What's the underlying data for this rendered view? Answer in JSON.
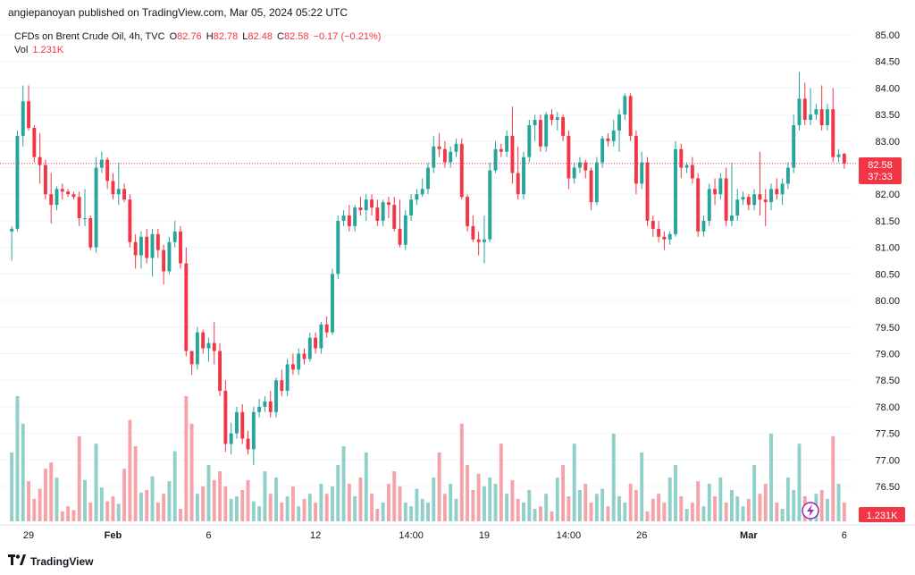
{
  "header": {
    "published": "angiepanoyan published on TradingView.com, Mar 05, 2024 05:22 UTC"
  },
  "legend": {
    "symbol": "CFDs on Brent Crude Oil, 4h, TVC",
    "o_label": "O",
    "o_value": "82.76",
    "h_label": "H",
    "h_value": "82.78",
    "l_label": "L",
    "l_value": "82.48",
    "c_label": "C",
    "c_value": "82.58",
    "change": "−0.17 (−0.21%)",
    "vol_label": "Vol",
    "vol_value": "1.231K"
  },
  "price_axis": {
    "ticks": [
      "85.00",
      "84.50",
      "84.00",
      "83.50",
      "83.00",
      "82.50",
      "82.00",
      "81.50",
      "81.00",
      "80.50",
      "80.00",
      "79.50",
      "79.00",
      "78.50",
      "78.00",
      "77.50",
      "77.00",
      "76.50"
    ]
  },
  "time_axis": {
    "ticks": [
      "29",
      "Feb",
      "6",
      "12",
      "14:00",
      "19",
      "14:00",
      "26",
      "Mar",
      "6"
    ]
  },
  "last_price": {
    "price": "82.58",
    "countdown": "37:33"
  },
  "volume_label": "1.231K",
  "footer": {
    "brand": "TradingView"
  },
  "colors": {
    "up": "#26a69a",
    "down": "#f23645",
    "up_vol": "#8fd0c9",
    "down_vol": "#f5a3a8",
    "grid": "#f0f3fa"
  },
  "chart_data": {
    "type": "candlestick",
    "title": "CFDs on Brent Crude Oil, 4h, TVC",
    "ylim": [
      76.2,
      85.2
    ],
    "volume_max": 1.0,
    "candles": [
      {
        "o": 81.3,
        "h": 81.4,
        "l": 80.75,
        "c": 81.35,
        "v": 0.55
      },
      {
        "o": 81.35,
        "h": 83.2,
        "l": 81.3,
        "c": 83.1,
        "v": 1.0
      },
      {
        "o": 83.1,
        "h": 84.05,
        "l": 82.9,
        "c": 83.75,
        "v": 0.78
      },
      {
        "o": 83.75,
        "h": 84.05,
        "l": 83.2,
        "c": 83.25,
        "v": 0.32
      },
      {
        "o": 83.25,
        "h": 83.3,
        "l": 82.6,
        "c": 82.7,
        "v": 0.18
      },
      {
        "o": 82.7,
        "h": 83.15,
        "l": 82.2,
        "c": 82.55,
        "v": 0.26
      },
      {
        "o": 82.55,
        "h": 82.65,
        "l": 81.9,
        "c": 82.0,
        "v": 0.42
      },
      {
        "o": 82.0,
        "h": 82.4,
        "l": 81.45,
        "c": 81.8,
        "v": 0.47
      },
      {
        "o": 81.8,
        "h": 82.15,
        "l": 81.7,
        "c": 82.1,
        "v": 0.35
      },
      {
        "o": 82.1,
        "h": 82.2,
        "l": 81.9,
        "c": 82.05,
        "v": 0.08
      },
      {
        "o": 82.05,
        "h": 82.1,
        "l": 81.95,
        "c": 82.0,
        "v": 0.12
      },
      {
        "o": 82.0,
        "h": 82.05,
        "l": 81.9,
        "c": 81.95,
        "v": 0.09
      },
      {
        "o": 81.95,
        "h": 82.05,
        "l": 81.4,
        "c": 81.55,
        "v": 0.68
      },
      {
        "o": 81.55,
        "h": 82.1,
        "l": 81.4,
        "c": 81.55,
        "v": 0.33
      },
      {
        "o": 81.55,
        "h": 81.6,
        "l": 80.95,
        "c": 81.0,
        "v": 0.15
      },
      {
        "o": 81.0,
        "h": 82.7,
        "l": 80.9,
        "c": 82.5,
        "v": 0.62
      },
      {
        "o": 82.5,
        "h": 82.8,
        "l": 82.4,
        "c": 82.65,
        "v": 0.27
      },
      {
        "o": 82.65,
        "h": 82.7,
        "l": 82.1,
        "c": 82.25,
        "v": 0.16
      },
      {
        "o": 82.25,
        "h": 82.4,
        "l": 81.9,
        "c": 82.0,
        "v": 0.2
      },
      {
        "o": 82.0,
        "h": 82.6,
        "l": 81.8,
        "c": 82.1,
        "v": 0.14
      },
      {
        "o": 82.1,
        "h": 82.2,
        "l": 81.85,
        "c": 81.9,
        "v": 0.42
      },
      {
        "o": 81.9,
        "h": 82.0,
        "l": 81.0,
        "c": 81.1,
        "v": 0.81
      },
      {
        "o": 81.1,
        "h": 81.25,
        "l": 80.6,
        "c": 80.85,
        "v": 0.6
      },
      {
        "o": 80.85,
        "h": 81.3,
        "l": 80.6,
        "c": 81.2,
        "v": 0.23
      },
      {
        "o": 81.2,
        "h": 81.35,
        "l": 80.7,
        "c": 80.8,
        "v": 0.25
      },
      {
        "o": 80.8,
        "h": 81.35,
        "l": 80.45,
        "c": 81.25,
        "v": 0.36
      },
      {
        "o": 81.25,
        "h": 81.35,
        "l": 80.8,
        "c": 80.95,
        "v": 0.15
      },
      {
        "o": 80.95,
        "h": 81.05,
        "l": 80.3,
        "c": 80.55,
        "v": 0.22
      },
      {
        "o": 80.55,
        "h": 81.2,
        "l": 80.5,
        "c": 81.1,
        "v": 0.32
      },
      {
        "o": 81.1,
        "h": 81.5,
        "l": 81.0,
        "c": 81.3,
        "v": 0.56
      },
      {
        "o": 81.3,
        "h": 81.4,
        "l": 80.6,
        "c": 80.7,
        "v": 0.1
      },
      {
        "o": 80.7,
        "h": 81.0,
        "l": 78.95,
        "c": 79.05,
        "v": 1.0
      },
      {
        "o": 79.05,
        "h": 79.0,
        "l": 78.6,
        "c": 78.8,
        "v": 0.78
      },
      {
        "o": 78.8,
        "h": 79.5,
        "l": 78.7,
        "c": 79.4,
        "v": 0.22
      },
      {
        "o": 79.4,
        "h": 79.45,
        "l": 79.0,
        "c": 79.1,
        "v": 0.28
      },
      {
        "o": 79.1,
        "h": 79.3,
        "l": 78.85,
        "c": 79.2,
        "v": 0.45
      },
      {
        "o": 79.2,
        "h": 79.6,
        "l": 78.8,
        "c": 79.05,
        "v": 0.33
      },
      {
        "o": 79.05,
        "h": 79.2,
        "l": 78.2,
        "c": 78.3,
        "v": 0.4
      },
      {
        "o": 78.3,
        "h": 78.5,
        "l": 77.15,
        "c": 77.3,
        "v": 0.28
      },
      {
        "o": 77.3,
        "h": 77.7,
        "l": 77.1,
        "c": 77.5,
        "v": 0.18
      },
      {
        "o": 77.5,
        "h": 78.0,
        "l": 77.4,
        "c": 77.9,
        "v": 0.2
      },
      {
        "o": 77.9,
        "h": 78.05,
        "l": 77.3,
        "c": 77.4,
        "v": 0.25
      },
      {
        "o": 77.4,
        "h": 77.55,
        "l": 77.1,
        "c": 77.2,
        "v": 0.33
      },
      {
        "o": 77.2,
        "h": 78.0,
        "l": 76.9,
        "c": 77.9,
        "v": 0.16
      },
      {
        "o": 77.9,
        "h": 78.15,
        "l": 77.8,
        "c": 78.0,
        "v": 0.12
      },
      {
        "o": 78.0,
        "h": 78.2,
        "l": 77.9,
        "c": 78.1,
        "v": 0.4
      },
      {
        "o": 78.1,
        "h": 78.3,
        "l": 77.8,
        "c": 77.9,
        "v": 0.22
      },
      {
        "o": 77.9,
        "h": 78.55,
        "l": 77.8,
        "c": 78.5,
        "v": 0.35
      },
      {
        "o": 78.5,
        "h": 78.7,
        "l": 78.2,
        "c": 78.3,
        "v": 0.15
      },
      {
        "o": 78.3,
        "h": 78.9,
        "l": 78.2,
        "c": 78.8,
        "v": 0.2
      },
      {
        "o": 78.8,
        "h": 79.0,
        "l": 78.6,
        "c": 78.7,
        "v": 0.28
      },
      {
        "o": 78.7,
        "h": 79.1,
        "l": 78.6,
        "c": 79.0,
        "v": 0.12
      },
      {
        "o": 79.0,
        "h": 79.1,
        "l": 78.8,
        "c": 78.9,
        "v": 0.18
      },
      {
        "o": 78.9,
        "h": 79.4,
        "l": 78.85,
        "c": 79.3,
        "v": 0.22
      },
      {
        "o": 79.3,
        "h": 79.4,
        "l": 79.0,
        "c": 79.1,
        "v": 0.15
      },
      {
        "o": 79.1,
        "h": 79.6,
        "l": 79.0,
        "c": 79.55,
        "v": 0.3
      },
      {
        "o": 79.55,
        "h": 79.7,
        "l": 79.3,
        "c": 79.4,
        "v": 0.22
      },
      {
        "o": 79.4,
        "h": 80.6,
        "l": 79.35,
        "c": 80.5,
        "v": 0.28
      },
      {
        "o": 80.5,
        "h": 81.6,
        "l": 80.4,
        "c": 81.5,
        "v": 0.45
      },
      {
        "o": 81.5,
        "h": 81.7,
        "l": 81.4,
        "c": 81.6,
        "v": 0.6
      },
      {
        "o": 81.6,
        "h": 81.8,
        "l": 81.3,
        "c": 81.4,
        "v": 0.3
      },
      {
        "o": 81.4,
        "h": 81.8,
        "l": 81.3,
        "c": 81.75,
        "v": 0.2
      },
      {
        "o": 81.75,
        "h": 81.95,
        "l": 81.6,
        "c": 81.7,
        "v": 0.35
      },
      {
        "o": 81.7,
        "h": 82.0,
        "l": 81.5,
        "c": 81.9,
        "v": 0.55
      },
      {
        "o": 81.9,
        "h": 82.0,
        "l": 81.6,
        "c": 81.75,
        "v": 0.22
      },
      {
        "o": 81.75,
        "h": 81.9,
        "l": 81.4,
        "c": 81.5,
        "v": 0.1
      },
      {
        "o": 81.5,
        "h": 81.9,
        "l": 81.4,
        "c": 81.85,
        "v": 0.15
      },
      {
        "o": 81.85,
        "h": 81.95,
        "l": 81.55,
        "c": 81.8,
        "v": 0.3
      },
      {
        "o": 81.8,
        "h": 81.95,
        "l": 81.3,
        "c": 81.35,
        "v": 0.4
      },
      {
        "o": 81.35,
        "h": 81.9,
        "l": 81.0,
        "c": 81.05,
        "v": 0.28
      },
      {
        "o": 81.05,
        "h": 81.7,
        "l": 80.95,
        "c": 81.6,
        "v": 0.15
      },
      {
        "o": 81.6,
        "h": 82.0,
        "l": 81.5,
        "c": 81.9,
        "v": 0.12
      },
      {
        "o": 81.9,
        "h": 82.1,
        "l": 81.8,
        "c": 82.0,
        "v": 0.26
      },
      {
        "o": 82.0,
        "h": 82.3,
        "l": 81.95,
        "c": 82.1,
        "v": 0.18
      },
      {
        "o": 82.1,
        "h": 82.6,
        "l": 82.0,
        "c": 82.5,
        "v": 0.15
      },
      {
        "o": 82.5,
        "h": 83.1,
        "l": 82.4,
        "c": 82.9,
        "v": 0.35
      },
      {
        "o": 82.9,
        "h": 83.15,
        "l": 82.7,
        "c": 82.85,
        "v": 0.55
      },
      {
        "o": 82.85,
        "h": 83.0,
        "l": 82.5,
        "c": 82.6,
        "v": 0.22
      },
      {
        "o": 82.6,
        "h": 82.9,
        "l": 82.5,
        "c": 82.8,
        "v": 0.3
      },
      {
        "o": 82.8,
        "h": 83.05,
        "l": 82.7,
        "c": 82.95,
        "v": 0.18
      },
      {
        "o": 82.95,
        "h": 83.05,
        "l": 81.9,
        "c": 81.95,
        "v": 0.78
      },
      {
        "o": 81.95,
        "h": 82.0,
        "l": 81.3,
        "c": 81.4,
        "v": 0.45
      },
      {
        "o": 81.4,
        "h": 81.6,
        "l": 81.1,
        "c": 81.15,
        "v": 0.25
      },
      {
        "o": 81.15,
        "h": 81.3,
        "l": 80.85,
        "c": 81.1,
        "v": 0.38
      },
      {
        "o": 81.1,
        "h": 81.6,
        "l": 80.7,
        "c": 81.15,
        "v": 0.28
      },
      {
        "o": 81.15,
        "h": 82.6,
        "l": 81.1,
        "c": 82.45,
        "v": 0.35
      },
      {
        "o": 82.45,
        "h": 83.0,
        "l": 82.4,
        "c": 82.85,
        "v": 0.3
      },
      {
        "o": 82.85,
        "h": 82.95,
        "l": 82.7,
        "c": 82.8,
        "v": 0.62
      },
      {
        "o": 82.8,
        "h": 83.2,
        "l": 82.7,
        "c": 83.1,
        "v": 0.22
      },
      {
        "o": 83.1,
        "h": 83.65,
        "l": 82.2,
        "c": 82.4,
        "v": 0.33
      },
      {
        "o": 82.4,
        "h": 82.9,
        "l": 81.9,
        "c": 82.0,
        "v": 0.18
      },
      {
        "o": 82.0,
        "h": 82.8,
        "l": 81.9,
        "c": 82.7,
        "v": 0.15
      },
      {
        "o": 82.7,
        "h": 83.4,
        "l": 82.6,
        "c": 83.3,
        "v": 0.25
      },
      {
        "o": 83.3,
        "h": 83.5,
        "l": 83.0,
        "c": 83.4,
        "v": 0.1
      },
      {
        "o": 83.4,
        "h": 83.5,
        "l": 82.8,
        "c": 82.9,
        "v": 0.12
      },
      {
        "o": 82.9,
        "h": 83.55,
        "l": 82.8,
        "c": 83.5,
        "v": 0.22
      },
      {
        "o": 83.5,
        "h": 83.6,
        "l": 83.3,
        "c": 83.4,
        "v": 0.08
      },
      {
        "o": 83.4,
        "h": 83.55,
        "l": 83.2,
        "c": 83.45,
        "v": 0.35
      },
      {
        "o": 83.45,
        "h": 83.5,
        "l": 83.0,
        "c": 83.1,
        "v": 0.45
      },
      {
        "o": 83.1,
        "h": 83.2,
        "l": 82.1,
        "c": 82.3,
        "v": 0.2
      },
      {
        "o": 82.3,
        "h": 82.6,
        "l": 82.2,
        "c": 82.5,
        "v": 0.62
      },
      {
        "o": 82.5,
        "h": 82.7,
        "l": 82.4,
        "c": 82.6,
        "v": 0.25
      },
      {
        "o": 82.6,
        "h": 82.65,
        "l": 82.3,
        "c": 82.45,
        "v": 0.3
      },
      {
        "o": 82.45,
        "h": 82.5,
        "l": 81.7,
        "c": 81.85,
        "v": 0.15
      },
      {
        "o": 81.85,
        "h": 82.7,
        "l": 81.8,
        "c": 82.6,
        "v": 0.22
      },
      {
        "o": 82.6,
        "h": 83.1,
        "l": 82.5,
        "c": 83.05,
        "v": 0.26
      },
      {
        "o": 83.05,
        "h": 83.15,
        "l": 82.9,
        "c": 83.0,
        "v": 0.12
      },
      {
        "o": 83.0,
        "h": 83.4,
        "l": 82.9,
        "c": 83.2,
        "v": 0.7
      },
      {
        "o": 83.2,
        "h": 83.6,
        "l": 82.8,
        "c": 83.5,
        "v": 0.2
      },
      {
        "o": 83.5,
        "h": 83.9,
        "l": 83.4,
        "c": 83.85,
        "v": 0.15
      },
      {
        "o": 83.85,
        "h": 83.9,
        "l": 83.0,
        "c": 83.1,
        "v": 0.3
      },
      {
        "o": 83.1,
        "h": 83.2,
        "l": 82.0,
        "c": 82.2,
        "v": 0.25
      },
      {
        "o": 82.2,
        "h": 82.8,
        "l": 82.1,
        "c": 82.6,
        "v": 0.55
      },
      {
        "o": 82.6,
        "h": 82.7,
        "l": 81.4,
        "c": 81.5,
        "v": 0.08
      },
      {
        "o": 81.5,
        "h": 81.6,
        "l": 81.2,
        "c": 81.35,
        "v": 0.18
      },
      {
        "o": 81.35,
        "h": 81.5,
        "l": 81.1,
        "c": 81.2,
        "v": 0.22
      },
      {
        "o": 81.2,
        "h": 81.3,
        "l": 80.95,
        "c": 81.15,
        "v": 0.15
      },
      {
        "o": 81.15,
        "h": 81.3,
        "l": 81.05,
        "c": 81.25,
        "v": 0.35
      },
      {
        "o": 81.25,
        "h": 83.0,
        "l": 81.2,
        "c": 82.85,
        "v": 0.45
      },
      {
        "o": 82.85,
        "h": 82.95,
        "l": 82.3,
        "c": 82.5,
        "v": 0.2
      },
      {
        "o": 82.5,
        "h": 82.6,
        "l": 82.4,
        "c": 82.55,
        "v": 0.1
      },
      {
        "o": 82.55,
        "h": 82.7,
        "l": 82.2,
        "c": 82.3,
        "v": 0.15
      },
      {
        "o": 82.3,
        "h": 82.4,
        "l": 81.2,
        "c": 81.3,
        "v": 0.32
      },
      {
        "o": 81.3,
        "h": 81.6,
        "l": 81.2,
        "c": 81.5,
        "v": 0.12
      },
      {
        "o": 81.5,
        "h": 82.2,
        "l": 81.4,
        "c": 82.1,
        "v": 0.3
      },
      {
        "o": 82.1,
        "h": 82.3,
        "l": 81.8,
        "c": 82.0,
        "v": 0.2
      },
      {
        "o": 82.0,
        "h": 82.4,
        "l": 81.9,
        "c": 82.3,
        "v": 0.35
      },
      {
        "o": 82.3,
        "h": 82.5,
        "l": 81.4,
        "c": 81.5,
        "v": 0.15
      },
      {
        "o": 81.5,
        "h": 82.6,
        "l": 81.4,
        "c": 81.6,
        "v": 0.25
      },
      {
        "o": 81.6,
        "h": 82.1,
        "l": 81.5,
        "c": 81.9,
        "v": 0.2
      },
      {
        "o": 81.9,
        "h": 82.05,
        "l": 81.8,
        "c": 81.95,
        "v": 0.12
      },
      {
        "o": 81.95,
        "h": 82.0,
        "l": 81.7,
        "c": 81.8,
        "v": 0.18
      },
      {
        "o": 81.8,
        "h": 82.1,
        "l": 81.7,
        "c": 82.0,
        "v": 0.45
      },
      {
        "o": 82.0,
        "h": 82.8,
        "l": 81.6,
        "c": 81.9,
        "v": 0.22
      },
      {
        "o": 81.9,
        "h": 82.1,
        "l": 81.4,
        "c": 81.85,
        "v": 0.3
      },
      {
        "o": 81.85,
        "h": 82.2,
        "l": 81.7,
        "c": 82.1,
        "v": 0.7
      },
      {
        "o": 82.1,
        "h": 82.3,
        "l": 81.9,
        "c": 82.0,
        "v": 0.15
      },
      {
        "o": 82.0,
        "h": 82.3,
        "l": 81.8,
        "c": 82.2,
        "v": 0.1
      },
      {
        "o": 82.2,
        "h": 82.6,
        "l": 82.1,
        "c": 82.5,
        "v": 0.35
      },
      {
        "o": 82.5,
        "h": 83.5,
        "l": 82.4,
        "c": 83.3,
        "v": 0.25
      },
      {
        "o": 83.3,
        "h": 84.3,
        "l": 83.2,
        "c": 83.8,
        "v": 0.62
      },
      {
        "o": 83.8,
        "h": 84.1,
        "l": 83.3,
        "c": 83.4,
        "v": 0.2
      },
      {
        "o": 83.4,
        "h": 84.0,
        "l": 83.3,
        "c": 83.5,
        "v": 0.12
      },
      {
        "o": 83.5,
        "h": 83.7,
        "l": 83.4,
        "c": 83.6,
        "v": 0.22
      },
      {
        "o": 83.6,
        "h": 84.05,
        "l": 83.2,
        "c": 83.3,
        "v": 0.25
      },
      {
        "o": 83.3,
        "h": 83.7,
        "l": 83.2,
        "c": 83.6,
        "v": 0.18
      },
      {
        "o": 83.6,
        "h": 84.0,
        "l": 82.6,
        "c": 82.7,
        "v": 0.68
      },
      {
        "o": 82.7,
        "h": 82.85,
        "l": 82.6,
        "c": 82.75,
        "v": 0.3
      },
      {
        "o": 82.76,
        "h": 82.78,
        "l": 82.48,
        "c": 82.58,
        "v": 0.15
      }
    ]
  }
}
